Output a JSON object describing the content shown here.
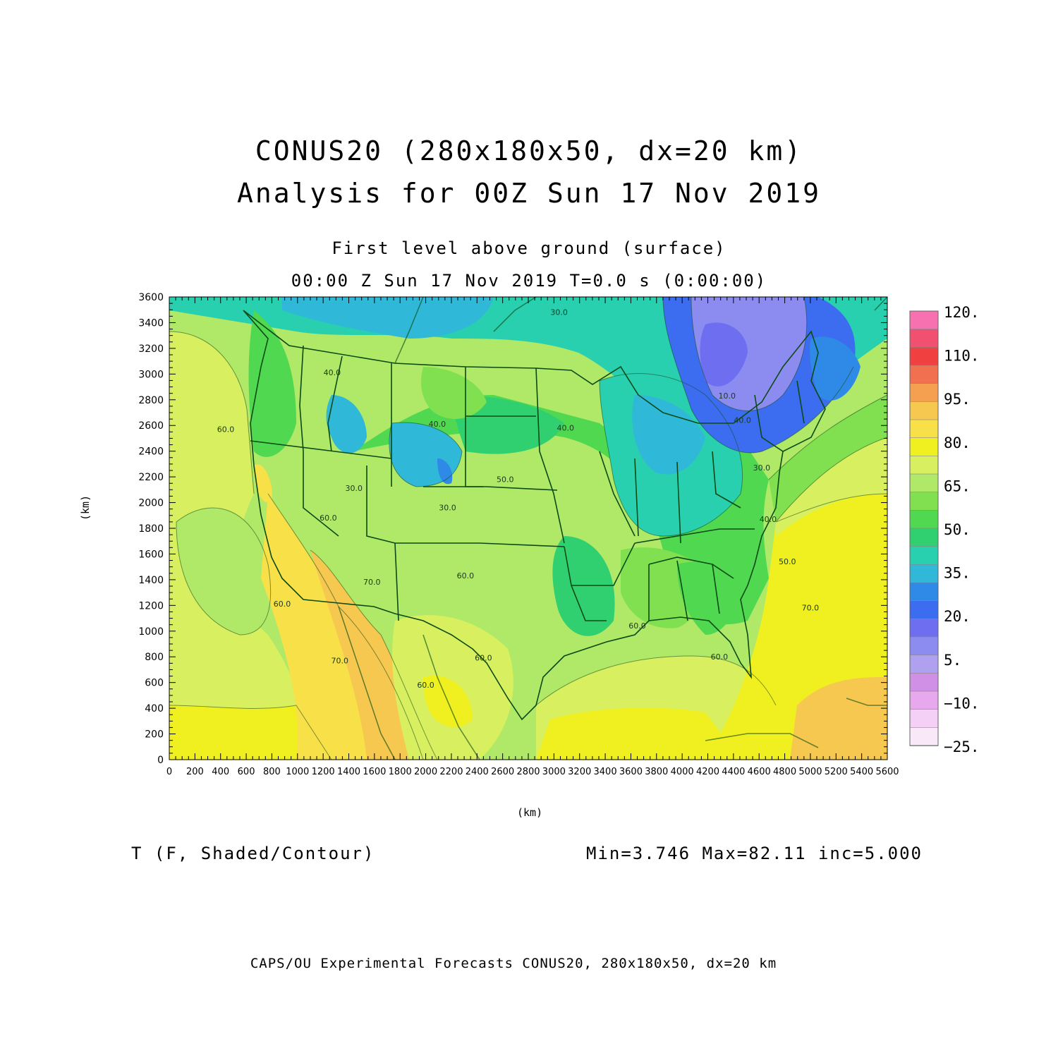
{
  "title": "CONUS20 (280x180x50, dx=20 km)",
  "subtitle": "Analysis for 00Z Sun 17 Nov 2019",
  "level_label": "First level above ground (surface)",
  "time_label": "00:00 Z Sun 17 Nov 2019    T=0.0 s (0:00:00)",
  "variable_label": "T (F, Shaded/Contour)",
  "stats_label": "Min=3.746  Max=82.11  inc=5.000",
  "footer": "CAPS/OU Experimental Forecasts  CONUS20, 280x180x50, dx=20 km",
  "x_axis": {
    "label": "(km)",
    "range": [
      0,
      5600
    ],
    "ticks": [
      "0",
      "200",
      "400",
      "600",
      "800",
      "1000",
      "1200",
      "1400",
      "1600",
      "1800",
      "2000",
      "2200",
      "2400",
      "2600",
      "2800",
      "3000",
      "3200",
      "3400",
      "3600",
      "3800",
      "4000",
      "4200",
      "4400",
      "4600",
      "4800",
      "5000",
      "5200",
      "5400",
      "5600"
    ]
  },
  "y_axis": {
    "label": "(km)",
    "range": [
      0,
      3600
    ],
    "ticks": [
      "0",
      "200",
      "400",
      "600",
      "800",
      "1000",
      "1200",
      "1400",
      "1600",
      "1800",
      "2000",
      "2200",
      "2400",
      "2600",
      "2800",
      "3000",
      "3200",
      "3400",
      "3600"
    ]
  },
  "colorbar": {
    "labels": [
      "120.",
      "110.",
      "95.",
      "80.",
      "65.",
      "50.",
      "35.",
      "20.",
      "5.",
      "−10.",
      "−25."
    ],
    "colors_top_to_bottom": [
      "#f770b0",
      "#f25070",
      "#f04040",
      "#f07050",
      "#f4a050",
      "#f6c850",
      "#f8e048",
      "#f0f020",
      "#d8f060",
      "#b0e868",
      "#80e050",
      "#50d850",
      "#30d070",
      "#28d0b0",
      "#30b8d8",
      "#2e8ae6",
      "#3c6cf0",
      "#6e6ef0",
      "#8c8cf0",
      "#b0a0f0",
      "#d090e6",
      "#e8a8ee",
      "#f4d0f6",
      "#f8e8f8"
    ]
  },
  "contour_labels": [
    {
      "text": "30.0",
      "x": 3040,
      "y": 3460
    },
    {
      "text": "40.0",
      "x": 1270,
      "y": 2990
    },
    {
      "text": "40.0",
      "x": 2090,
      "y": 2590
    },
    {
      "text": "40.0",
      "x": 3090,
      "y": 2560
    },
    {
      "text": "40.0",
      "x": 4470,
      "y": 2620
    },
    {
      "text": "40.0",
      "x": 4670,
      "y": 1850
    },
    {
      "text": "10.0",
      "x": 4350,
      "y": 2810
    },
    {
      "text": "30.0",
      "x": 4620,
      "y": 2250
    },
    {
      "text": "30.0",
      "x": 1440,
      "y": 2090
    },
    {
      "text": "30.0",
      "x": 2170,
      "y": 1940
    },
    {
      "text": "50.0",
      "x": 2620,
      "y": 2160
    },
    {
      "text": "60.0",
      "x": 1240,
      "y": 1860
    },
    {
      "text": "60.0",
      "x": 440,
      "y": 2550
    },
    {
      "text": "60.0",
      "x": 880,
      "y": 1190
    },
    {
      "text": "60.0",
      "x": 2310,
      "y": 1410
    },
    {
      "text": "60.0",
      "x": 2450,
      "y": 770
    },
    {
      "text": "60.0",
      "x": 2000,
      "y": 560
    },
    {
      "text": "60.0",
      "x": 4290,
      "y": 780
    },
    {
      "text": "60.0",
      "x": 3650,
      "y": 1020
    },
    {
      "text": "70.0",
      "x": 1580,
      "y": 1360
    },
    {
      "text": "70.0",
      "x": 1330,
      "y": 750
    },
    {
      "text": "70.0",
      "x": 5000,
      "y": 1160
    },
    {
      "text": "50.0",
      "x": 4820,
      "y": 1520
    }
  ]
}
